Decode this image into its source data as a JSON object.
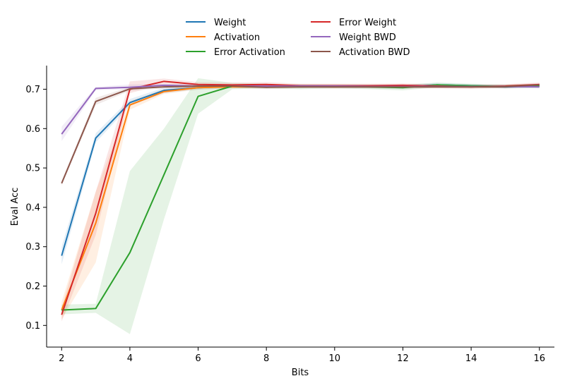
{
  "chart_data": {
    "type": "line",
    "title": "",
    "xlabel": "Bits",
    "ylabel": "Eval Acc",
    "xlim": [
      1.56,
      16.44
    ],
    "ylim": [
      0.045,
      0.76
    ],
    "xticks": [
      2,
      4,
      6,
      8,
      10,
      12,
      14,
      16
    ],
    "yticks": [
      0.1,
      0.2,
      0.3,
      0.4,
      0.5,
      0.6,
      0.7
    ],
    "xtick_labels": [
      "2",
      "4",
      "6",
      "8",
      "10",
      "12",
      "14",
      "16"
    ],
    "ytick_labels": [
      "0.1",
      "0.2",
      "0.3",
      "0.4",
      "0.5",
      "0.6",
      "0.7"
    ],
    "grid": false,
    "legend_position": "top-center",
    "x": [
      2,
      3,
      4,
      5,
      6,
      7,
      8,
      9,
      10,
      11,
      12,
      13,
      14,
      15,
      16
    ],
    "series": [
      {
        "name": "Weight",
        "color": "#1f77b4",
        "values": [
          0.277,
          0.576,
          0.666,
          0.697,
          0.704,
          0.707,
          0.707,
          0.708,
          0.707,
          0.707,
          0.706,
          0.711,
          0.709,
          0.706,
          0.709
        ],
        "lower": [
          0.255,
          0.565,
          0.658,
          0.69,
          0.699,
          0.703,
          0.703,
          0.704,
          0.703,
          0.703,
          0.701,
          0.706,
          0.705,
          0.702,
          0.705
        ],
        "upper": [
          0.3,
          0.588,
          0.675,
          0.704,
          0.709,
          0.711,
          0.711,
          0.712,
          0.711,
          0.711,
          0.711,
          0.716,
          0.713,
          0.71,
          0.713
        ]
      },
      {
        "name": "Activation",
        "color": "#ff7f0e",
        "values": [
          0.139,
          0.36,
          0.66,
          0.694,
          0.704,
          0.706,
          0.706,
          0.707,
          0.706,
          0.707,
          0.706,
          0.707,
          0.707,
          0.707,
          0.71
        ],
        "lower": [
          0.115,
          0.26,
          0.648,
          0.688,
          0.699,
          0.702,
          0.702,
          0.703,
          0.702,
          0.703,
          0.702,
          0.703,
          0.703,
          0.703,
          0.706
        ],
        "upper": [
          0.16,
          0.44,
          0.67,
          0.7,
          0.709,
          0.71,
          0.71,
          0.711,
          0.71,
          0.711,
          0.71,
          0.711,
          0.711,
          0.711,
          0.714
        ]
      },
      {
        "name": "Error Activation",
        "color": "#2ca02c",
        "values": [
          0.139,
          0.143,
          0.285,
          0.483,
          0.682,
          0.708,
          0.708,
          0.706,
          0.707,
          0.706,
          0.704,
          0.711,
          0.709,
          0.707,
          0.708
        ],
        "lower": [
          0.128,
          0.132,
          0.078,
          0.37,
          0.638,
          0.7,
          0.702,
          0.7,
          0.702,
          0.7,
          0.697,
          0.705,
          0.704,
          0.702,
          0.703
        ],
        "upper": [
          0.153,
          0.155,
          0.492,
          0.6,
          0.728,
          0.716,
          0.714,
          0.712,
          0.712,
          0.712,
          0.711,
          0.717,
          0.714,
          0.712,
          0.713
        ]
      },
      {
        "name": "Error Weight",
        "color": "#d62728",
        "values": [
          0.127,
          0.385,
          0.7,
          0.72,
          0.712,
          0.711,
          0.712,
          0.709,
          0.709,
          0.709,
          0.71,
          0.708,
          0.706,
          0.708,
          0.712
        ],
        "lower": [
          0.11,
          0.33,
          0.69,
          0.713,
          0.706,
          0.705,
          0.706,
          0.704,
          0.704,
          0.704,
          0.705,
          0.703,
          0.701,
          0.703,
          0.707
        ],
        "upper": [
          0.145,
          0.44,
          0.72,
          0.727,
          0.718,
          0.717,
          0.718,
          0.714,
          0.714,
          0.714,
          0.715,
          0.713,
          0.711,
          0.713,
          0.717
        ]
      },
      {
        "name": "Weight BWD",
        "color": "#9467bd",
        "values": [
          0.586,
          0.702,
          0.705,
          0.71,
          0.708,
          0.708,
          0.708,
          0.708,
          0.708,
          0.707,
          0.707,
          0.707,
          0.707,
          0.707,
          0.706
        ],
        "lower": [
          0.568,
          0.698,
          0.7,
          0.706,
          0.704,
          0.704,
          0.704,
          0.704,
          0.704,
          0.703,
          0.703,
          0.703,
          0.703,
          0.703,
          0.702
        ],
        "upper": [
          0.605,
          0.706,
          0.712,
          0.714,
          0.712,
          0.712,
          0.712,
          0.712,
          0.712,
          0.711,
          0.711,
          0.711,
          0.711,
          0.711,
          0.71
        ]
      },
      {
        "name": "Activation BWD",
        "color": "#8c564b",
        "values": [
          0.461,
          0.669,
          0.701,
          0.706,
          0.708,
          0.708,
          0.705,
          0.706,
          0.706,
          0.706,
          0.706,
          0.706,
          0.706,
          0.707,
          0.711
        ],
        "lower": [
          0.455,
          0.66,
          0.696,
          0.702,
          0.704,
          0.704,
          0.701,
          0.702,
          0.702,
          0.702,
          0.702,
          0.702,
          0.702,
          0.703,
          0.707
        ],
        "upper": [
          0.467,
          0.678,
          0.706,
          0.71,
          0.712,
          0.712,
          0.709,
          0.71,
          0.71,
          0.71,
          0.71,
          0.71,
          0.71,
          0.711,
          0.715
        ]
      }
    ]
  }
}
